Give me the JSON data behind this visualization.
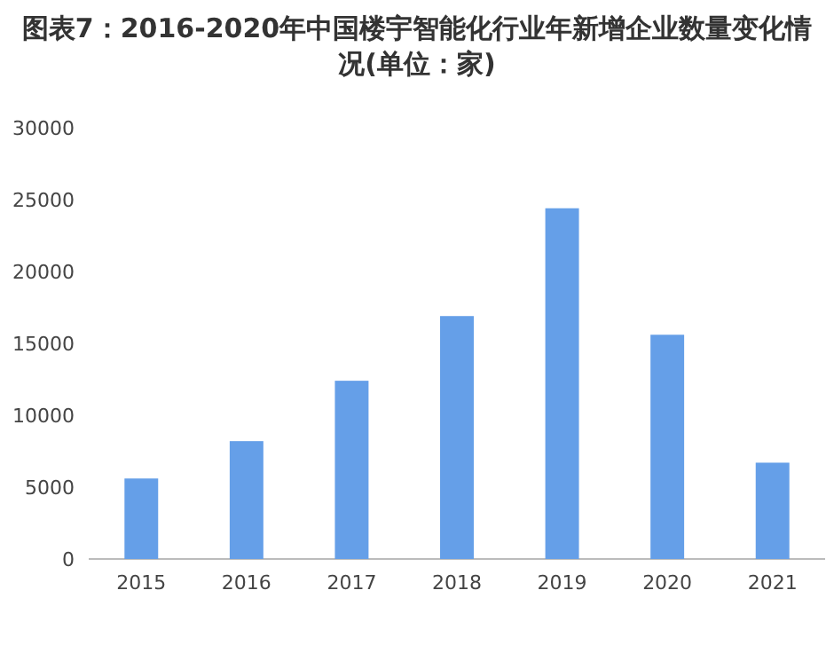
{
  "chart_data": {
    "type": "bar",
    "title": "图表7：2016-2020年中国楼宇智能化行业年新增企业数量变化情况(单位：家)",
    "categories": [
      "2015",
      "2016",
      "2017",
      "2018",
      "2019",
      "2020",
      "2021"
    ],
    "values": [
      5600,
      8200,
      12400,
      16900,
      24400,
      15600,
      6700
    ],
    "color": "#659fe8",
    "ylim": [
      0,
      30000
    ],
    "yticks": [
      0,
      5000,
      10000,
      15000,
      20000,
      25000,
      30000
    ],
    "grid": false
  }
}
